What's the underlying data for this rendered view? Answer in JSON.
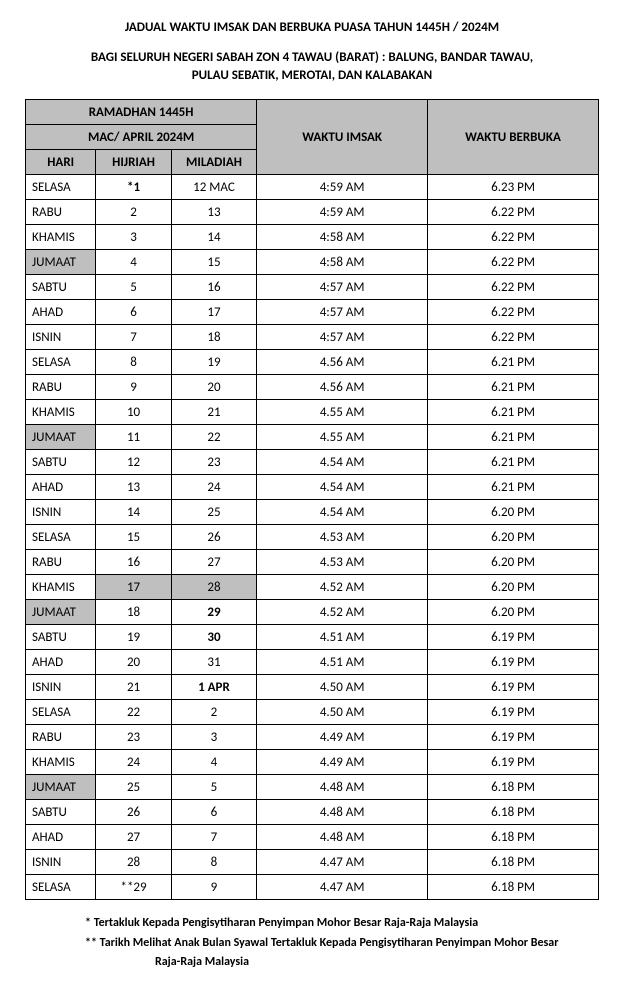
{
  "title": "JADUAL WAKTU IMSAK DAN BERBUKA PUASA TAHUN 1445H / 2024M",
  "subtitle_line1": "BAGI SELURUH NEGERI SABAH ZON 4 TAWAU (BARAT) : BALUNG, BANDAR TAWAU,",
  "subtitle_line2": "PULAU SEBATIK,  MEROTAI, DAN KALABAKAN",
  "headers": {
    "ramadhan": "RAMADHAN 1445H",
    "mac_april": "MAC/ APRIL 2024M",
    "imsak": "WAKTU IMSAK",
    "berbuka": "WAKTU BERBUKA",
    "hari": "HARI",
    "hijriah": "HIJRIAH",
    "miladiah": "MILADIAH"
  },
  "rows": [
    {
      "hari": "SELASA",
      "hij": "*1",
      "hij_bold": true,
      "mil": "12 MAC",
      "imsak": "4:59 AM",
      "berbuka": "6.23 PM"
    },
    {
      "hari": "RABU",
      "hij": "2",
      "mil": "13",
      "imsak": "4:59 AM",
      "berbuka": "6.22 PM"
    },
    {
      "hari": "KHAMIS",
      "hij": "3",
      "mil": "14",
      "imsak": "4:58 AM",
      "berbuka": "6.22 PM"
    },
    {
      "hari": "JUMAAT",
      "hari_grey": true,
      "hij": "4",
      "mil": "15",
      "imsak": "4:58 AM",
      "berbuka": "6.22 PM"
    },
    {
      "hari": "SABTU",
      "hij": "5",
      "mil": "16",
      "imsak": "4:57 AM",
      "berbuka": "6.22 PM"
    },
    {
      "hari": "AHAD",
      "hij": "6",
      "mil": "17",
      "imsak": "4:57 AM",
      "berbuka": "6.22 PM"
    },
    {
      "hari": "ISNIN",
      "hij": "7",
      "mil": "18",
      "imsak": "4:57 AM",
      "berbuka": "6.22 PM"
    },
    {
      "hari": "SELASA",
      "hij": "8",
      "mil": "19",
      "imsak": "4.56 AM",
      "berbuka": "6.21 PM"
    },
    {
      "hari": "RABU",
      "hij": "9",
      "mil": "20",
      "imsak": "4.56 AM",
      "berbuka": "6.21 PM"
    },
    {
      "hari": "KHAMIS",
      "hij": "10",
      "mil": "21",
      "imsak": "4.55 AM",
      "berbuka": "6.21 PM"
    },
    {
      "hari": "JUMAAT",
      "hari_grey": true,
      "hij": "11",
      "mil": "22",
      "imsak": "4.55 AM",
      "berbuka": "6.21 PM"
    },
    {
      "hari": "SABTU",
      "hij": "12",
      "mil": "23",
      "imsak": "4.54 AM",
      "berbuka": "6.21 PM"
    },
    {
      "hari": "AHAD",
      "hij": "13",
      "mil": "24",
      "imsak": "4.54 AM",
      "berbuka": "6.21 PM"
    },
    {
      "hari": "ISNIN",
      "hij": "14",
      "mil": "25",
      "imsak": "4.54 AM",
      "berbuka": "6.20 PM"
    },
    {
      "hari": "SELASA",
      "hij": "15",
      "mil": "26",
      "imsak": "4.53 AM",
      "berbuka": "6.20 PM"
    },
    {
      "hari": "RABU",
      "hij": "16",
      "mil": "27",
      "imsak": "4.53 AM",
      "berbuka": "6.20 PM"
    },
    {
      "hari": "KHAMIS",
      "hij": "17",
      "hij_grey": true,
      "mil": "28",
      "mil_grey": true,
      "imsak": "4.52 AM",
      "berbuka": "6.20 PM"
    },
    {
      "hari": "JUMAAT",
      "hari_grey": true,
      "hij": "18",
      "mil": "29",
      "mil_bold": true,
      "imsak": "4.52 AM",
      "berbuka": "6.20 PM"
    },
    {
      "hari": "SABTU",
      "hij": "19",
      "mil": "30",
      "mil_bold": true,
      "imsak": "4.51 AM",
      "berbuka": "6.19 PM"
    },
    {
      "hari": "AHAD",
      "hij": "20",
      "mil": "31",
      "imsak": "4.51 AM",
      "berbuka": "6.19 PM"
    },
    {
      "hari": "ISNIN",
      "hij": "21",
      "mil": "1 APR",
      "mil_bold": true,
      "imsak": "4.50 AM",
      "berbuka": "6.19 PM"
    },
    {
      "hari": "SELASA",
      "hij": "22",
      "mil": "2",
      "imsak": "4.50 AM",
      "berbuka": "6.19 PM"
    },
    {
      "hari": "RABU",
      "hij": "23",
      "mil": "3",
      "imsak": "4.49 AM",
      "berbuka": "6.19 PM"
    },
    {
      "hari": "KHAMIS",
      "hij": "24",
      "mil": "4",
      "imsak": "4.49 AM",
      "berbuka": "6.19 PM"
    },
    {
      "hari": "JUMAAT",
      "hari_grey": true,
      "hij": "25",
      "mil": "5",
      "imsak": "4.48 AM",
      "berbuka": "6.18 PM"
    },
    {
      "hari": "SABTU",
      "hij": "26",
      "mil": "6",
      "imsak": "4.48 AM",
      "berbuka": "6.18 PM"
    },
    {
      "hari": "AHAD",
      "hij": "27",
      "mil": "7",
      "imsak": "4.48 AM",
      "berbuka": "6.18 PM"
    },
    {
      "hari": "ISNIN",
      "hij": "28",
      "mil": "8",
      "imsak": "4.47 AM",
      "berbuka": "6.18 PM"
    },
    {
      "hari": "SELASA",
      "hij": "**29",
      "mil": "9",
      "imsak": "4.47 AM",
      "berbuka": "6.18 PM"
    }
  ],
  "footnote1": "* Tertakluk Kepada Pengisytiharan Penyimpan Mohor Besar Raja-Raja Malaysia",
  "footnote2": "** Tarikh Melihat Anak Bulan Syawal Tertakluk Kepada Pengisytiharan Penyimpan Mohor Besar",
  "footnote3": "Raja-Raja Malaysia",
  "col_widths": {
    "hari": "70px",
    "hij": "75px",
    "mil": "85px",
    "imsak": "170px",
    "berbuka": "170px"
  }
}
